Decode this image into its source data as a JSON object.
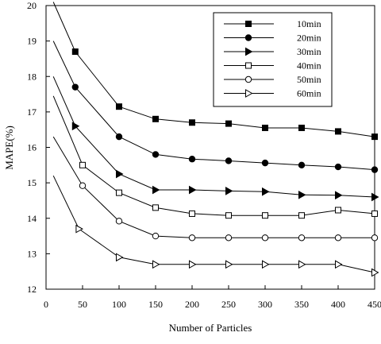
{
  "chart_data": {
    "type": "line",
    "title": "",
    "xlabel": "Number of Particles",
    "ylabel": "MAPE(%)",
    "xlim": [
      0,
      450
    ],
    "ylim": [
      12,
      20
    ],
    "xticks": [
      "0",
      "50",
      "100",
      "150",
      "200",
      "250",
      "300",
      "350",
      "400",
      "450"
    ],
    "yticks": [
      "12",
      "13",
      "14",
      "15",
      "16",
      "17",
      "18",
      "19",
      "20"
    ],
    "grid": false,
    "legend_position": "top-right",
    "series": [
      {
        "name": "10min",
        "marker": "square-filled",
        "line": [
          [
            10,
            20.1
          ],
          [
            40,
            18.7
          ],
          [
            100,
            17.15
          ],
          [
            150,
            16.8
          ],
          [
            200,
            16.7
          ],
          [
            250,
            16.67
          ],
          [
            300,
            16.55
          ],
          [
            350,
            16.55
          ],
          [
            400,
            16.45
          ],
          [
            450,
            16.3
          ]
        ],
        "markers": [
          [
            40,
            18.7
          ],
          [
            100,
            17.15
          ],
          [
            150,
            16.8
          ],
          [
            200,
            16.7
          ],
          [
            250,
            16.67
          ],
          [
            300,
            16.55
          ],
          [
            350,
            16.55
          ],
          [
            400,
            16.45
          ],
          [
            450,
            16.3
          ]
        ]
      },
      {
        "name": "20min",
        "marker": "circle-filled",
        "line": [
          [
            10,
            19.0
          ],
          [
            40,
            17.7
          ],
          [
            100,
            16.3
          ],
          [
            150,
            15.8
          ],
          [
            200,
            15.67
          ],
          [
            250,
            15.62
          ],
          [
            300,
            15.56
          ],
          [
            350,
            15.5
          ],
          [
            400,
            15.45
          ],
          [
            450,
            15.37
          ]
        ],
        "markers": [
          [
            40,
            17.7
          ],
          [
            100,
            16.3
          ],
          [
            150,
            15.8
          ],
          [
            200,
            15.67
          ],
          [
            250,
            15.62
          ],
          [
            300,
            15.56
          ],
          [
            350,
            15.5
          ],
          [
            400,
            15.45
          ],
          [
            450,
            15.37
          ]
        ]
      },
      {
        "name": "30min",
        "marker": "triangle-right-filled",
        "line": [
          [
            10,
            18.0
          ],
          [
            40,
            16.6
          ],
          [
            100,
            15.25
          ],
          [
            150,
            14.8
          ],
          [
            200,
            14.8
          ],
          [
            250,
            14.77
          ],
          [
            300,
            14.75
          ],
          [
            350,
            14.66
          ],
          [
            400,
            14.65
          ],
          [
            450,
            14.6
          ]
        ],
        "markers": [
          [
            40,
            16.6
          ],
          [
            100,
            15.25
          ],
          [
            150,
            14.8
          ],
          [
            200,
            14.8
          ],
          [
            250,
            14.77
          ],
          [
            300,
            14.75
          ],
          [
            350,
            14.66
          ],
          [
            400,
            14.65
          ],
          [
            450,
            14.6
          ]
        ]
      },
      {
        "name": "40min",
        "marker": "square-open",
        "line": [
          [
            10,
            17.45
          ],
          [
            50,
            15.5
          ],
          [
            100,
            14.72
          ],
          [
            150,
            14.3
          ],
          [
            200,
            14.13
          ],
          [
            250,
            14.08
          ],
          [
            300,
            14.08
          ],
          [
            350,
            14.08
          ],
          [
            400,
            14.23
          ],
          [
            450,
            14.13
          ]
        ],
        "markers": [
          [
            50,
            15.5
          ],
          [
            100,
            14.72
          ],
          [
            150,
            14.3
          ],
          [
            200,
            14.13
          ],
          [
            250,
            14.08
          ],
          [
            300,
            14.08
          ],
          [
            350,
            14.08
          ],
          [
            400,
            14.23
          ],
          [
            450,
            14.13
          ]
        ]
      },
      {
        "name": "50min",
        "marker": "circle-open",
        "line": [
          [
            10,
            16.3
          ],
          [
            50,
            14.92
          ],
          [
            100,
            13.92
          ],
          [
            150,
            13.5
          ],
          [
            200,
            13.45
          ],
          [
            250,
            13.45
          ],
          [
            300,
            13.45
          ],
          [
            350,
            13.45
          ],
          [
            400,
            13.45
          ],
          [
            450,
            13.45
          ]
        ],
        "markers": [
          [
            50,
            14.92
          ],
          [
            100,
            13.92
          ],
          [
            150,
            13.5
          ],
          [
            200,
            13.45
          ],
          [
            250,
            13.45
          ],
          [
            300,
            13.45
          ],
          [
            350,
            13.45
          ],
          [
            400,
            13.45
          ],
          [
            450,
            13.45
          ]
        ]
      },
      {
        "name": "60min",
        "marker": "triangle-right-open",
        "line": [
          [
            10,
            15.2
          ],
          [
            45,
            13.7
          ],
          [
            100,
            12.9
          ],
          [
            150,
            12.7
          ],
          [
            200,
            12.7
          ],
          [
            250,
            12.7
          ],
          [
            300,
            12.7
          ],
          [
            350,
            12.7
          ],
          [
            400,
            12.7
          ],
          [
            450,
            12.47
          ]
        ],
        "markers": [
          [
            45,
            13.7
          ],
          [
            100,
            12.9
          ],
          [
            150,
            12.7
          ],
          [
            200,
            12.7
          ],
          [
            250,
            12.7
          ],
          [
            300,
            12.7
          ],
          [
            350,
            12.7
          ],
          [
            400,
            12.7
          ],
          [
            450,
            12.47
          ]
        ]
      }
    ]
  }
}
